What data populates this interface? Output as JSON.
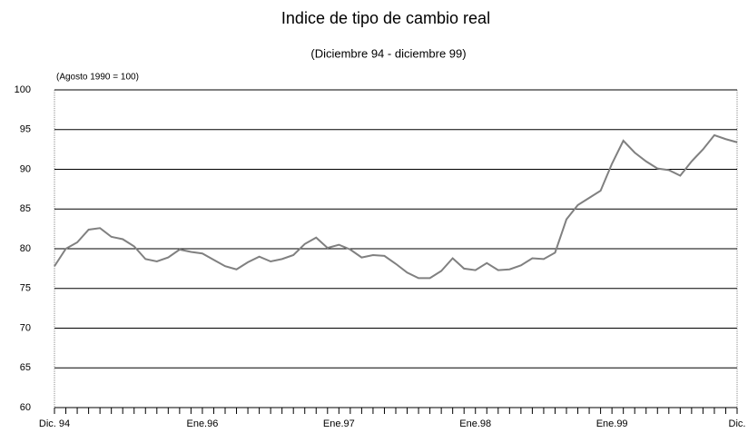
{
  "chart_data": {
    "type": "line",
    "title": "Indice de tipo de cambio real",
    "subtitle": "(Diciembre 94 - diciembre 99)",
    "annotation": "(Agosto 1990 = 100)",
    "categories": [
      "Dic. 94",
      null,
      null,
      null,
      null,
      null,
      null,
      null,
      null,
      null,
      null,
      null,
      null,
      "Ene.96",
      null,
      null,
      null,
      null,
      null,
      null,
      null,
      null,
      null,
      null,
      null,
      "Ene.97",
      null,
      null,
      null,
      null,
      null,
      null,
      null,
      null,
      null,
      null,
      null,
      "Ene.98",
      null,
      null,
      null,
      null,
      null,
      null,
      null,
      null,
      null,
      null,
      null,
      "Ene.99",
      null,
      null,
      null,
      null,
      null,
      null,
      null,
      null,
      null,
      null,
      "Dic."
    ],
    "series": [
      {
        "name": "Indice",
        "color": "#808080",
        "values": [
          77.8,
          80.0,
          80.8,
          82.4,
          82.6,
          81.5,
          81.2,
          80.3,
          78.7,
          78.4,
          78.9,
          79.9,
          79.6,
          79.4,
          78.6,
          77.8,
          77.4,
          78.3,
          79.0,
          78.4,
          78.7,
          79.2,
          80.6,
          81.4,
          80.1,
          80.5,
          79.9,
          78.9,
          79.2,
          79.1,
          78.1,
          77.0,
          76.3,
          76.3,
          77.2,
          78.8,
          77.5,
          77.3,
          78.2,
          77.3,
          77.4,
          77.9,
          78.8,
          78.7,
          79.5,
          83.7,
          85.5,
          86.4,
          87.3,
          90.7,
          93.6,
          92.1,
          91.0,
          90.1,
          89.9,
          89.2,
          91.0,
          92.5,
          94.3,
          93.8,
          93.4
        ]
      }
    ],
    "ylim": [
      60,
      100
    ],
    "yticks": [
      60,
      65,
      70,
      75,
      80,
      85,
      90,
      95,
      100
    ],
    "grid": true
  }
}
